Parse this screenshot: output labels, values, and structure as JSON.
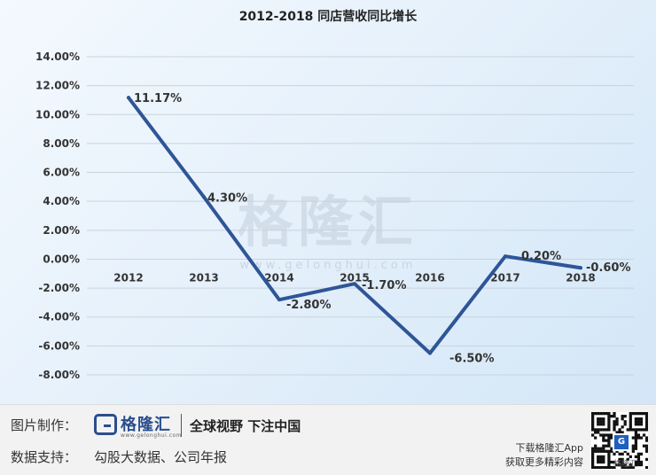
{
  "chart_data": {
    "type": "line",
    "title": "2012-2018 同店营收同比增长",
    "categories": [
      "2012",
      "2013",
      "2014",
      "2015",
      "2016",
      "2017",
      "2018"
    ],
    "series": [
      {
        "values": [
          11.17,
          4.3,
          -2.8,
          -1.7,
          -6.5,
          0.2,
          -0.6
        ],
        "labels": [
          "11.17%",
          "4.30%",
          "-2.80%",
          "-1.70%",
          "-6.50%",
          "0.20%",
          "-0.60%"
        ]
      }
    ],
    "y_ticks": [
      "14.00%",
      "12.00%",
      "10.00%",
      "8.00%",
      "6.00%",
      "4.00%",
      "2.00%",
      "0.00%",
      "-2.00%",
      "-4.00%",
      "-6.00%",
      "-8.00%"
    ],
    "ylim": [
      -8,
      14
    ],
    "grid": true,
    "legend": "none",
    "line_color": "#2f5597"
  },
  "watermark": {
    "text": "格隆汇",
    "url": "www.gelonghui.com"
  },
  "footer": {
    "made_by_label": "图片制作：",
    "brand_name": "格隆汇",
    "brand_url": "www.gelonghui.com",
    "slogan": "全球视野 下注中国",
    "data_source_label": "数据支持：",
    "data_source": "勾股大数据、公司年报",
    "download_line1": "下载格隆汇App",
    "download_line2": "获取更多精彩内容",
    "qr_caption": "格隆汇"
  }
}
